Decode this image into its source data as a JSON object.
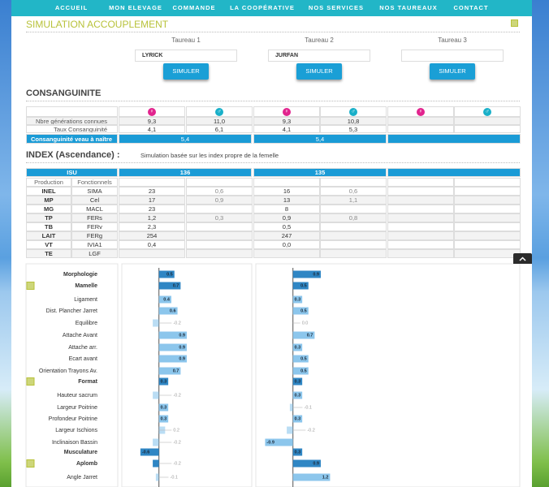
{
  "nav": {
    "items": [
      "ACCUEIL",
      "MON ELEVAGE",
      "COMMANDE",
      "LA COOPÉRATIVE",
      "NOS SERVICES",
      "NOS TAUREAUX",
      "CONTACT"
    ]
  },
  "page_title": "SIMULATION ACCOUPLEMENT",
  "bulls": [
    {
      "label": "Taureau 1",
      "value": "LYRICK"
    },
    {
      "label": "Taureau 2",
      "value": "JURFAN"
    },
    {
      "label": "Taureau 3",
      "value": null
    }
  ],
  "simulate_label": "SIMULER",
  "consanguinity": {
    "heading": "CONSANGUINITE",
    "symbols": [
      "♀",
      "♂"
    ],
    "rows": [
      {
        "label": "Nbre générations connues",
        "values": [
          "9,3",
          "11,0",
          "9,3",
          "10,8"
        ]
      },
      {
        "label": "Taux Consanguinité",
        "values": [
          "4,1",
          "6,1",
          "4,1",
          "5,3"
        ]
      }
    ],
    "offspring": {
      "label": "Consanguinité veau à naître",
      "values": [
        "5,4",
        "5,4"
      ]
    }
  },
  "index": {
    "heading": "INDEX (Ascendance) :",
    "note": "Simulation basée sur les index propre de la femelle",
    "isu": {
      "label": "ISU",
      "values": [
        "136",
        "135"
      ]
    },
    "subheader": [
      "Production",
      "Fonctionnels"
    ],
    "rows": [
      [
        "INEL",
        "SIMA",
        "23",
        "0,6",
        "16",
        "0,6"
      ],
      [
        "MP",
        "Cel",
        "17",
        "0,9",
        "13",
        "1,1"
      ],
      [
        "MG",
        "MACL",
        "23",
        null,
        "8",
        null
      ],
      [
        "TP",
        "FERs",
        "1,2",
        "0,3",
        "0,9",
        "0,8"
      ],
      [
        "TB",
        "FERv",
        "2,3",
        null,
        "0,5",
        null
      ],
      [
        "LAIT",
        "FERg",
        "254",
        null,
        "247",
        null
      ],
      [
        "VT",
        "IVIA1",
        "0,4",
        null,
        "0,0",
        null
      ],
      [
        "TE",
        "LGF",
        null,
        null,
        null,
        null
      ]
    ]
  },
  "chart_data": {
    "type": "bar",
    "orientation": "horizontal",
    "categories": [
      "Morphologie",
      "Mamelle",
      "Ligament",
      "Dist. Plancher Jarret",
      "Equilibre",
      "Attache Avant",
      "Attache arr.",
      "Ecart avant",
      "Orientation Trayons Av.",
      "Format",
      "Hauteur sacrum",
      "Largeur Poitrine",
      "Profondeur Poitrine",
      "Largeur Ischions",
      "Inclinaison Bassin",
      "Musculature",
      "Aplomb",
      "Angle Jarret"
    ],
    "section_categories": [
      "Morphologie",
      "Mamelle",
      "Format",
      "Musculature",
      "Aplomb"
    ],
    "collapsible_categories": [
      "Mamelle",
      "Format",
      "Aplomb"
    ],
    "xlim": [
      -1.2,
      3
    ],
    "section_color": "#2f86c4",
    "color": "#8cc6ec",
    "series": [
      {
        "values": [
          0.5,
          0.7,
          0.4,
          0.6,
          -0.2,
          0.9,
          0.9,
          0.9,
          0.7,
          0.3,
          -0.2,
          0.3,
          0.3,
          0.2,
          -0.2,
          -0.6,
          -0.2,
          -0.1
        ],
        "value_labels": [
          "0.5",
          "0.7",
          "0.4",
          "0.6",
          "-0.2",
          "0.9",
          "0.9",
          "0.9",
          "0.7",
          "0.3",
          "-0.2",
          "0.3",
          "0.3",
          "0.2",
          "-0.2",
          "-0.6",
          "-0.2",
          "-0.1"
        ]
      },
      {
        "values": [
          0.9,
          0.5,
          0.3,
          0.5,
          0,
          0.7,
          0.3,
          0.5,
          0.5,
          0.3,
          0.3,
          -0.1,
          0.3,
          -0.2,
          -0.9,
          0.3,
          0.9,
          1.2
        ],
        "value_labels": [
          "0.9",
          "0.5",
          "0.3",
          "0.5",
          "0.0",
          "0.7",
          "0.3",
          "0.5",
          "0.5",
          "0.3",
          "0.3",
          "-0.1",
          "0.3",
          "-0.2",
          "-0.9",
          "0.3",
          "0.9",
          "1.2"
        ]
      }
    ]
  }
}
